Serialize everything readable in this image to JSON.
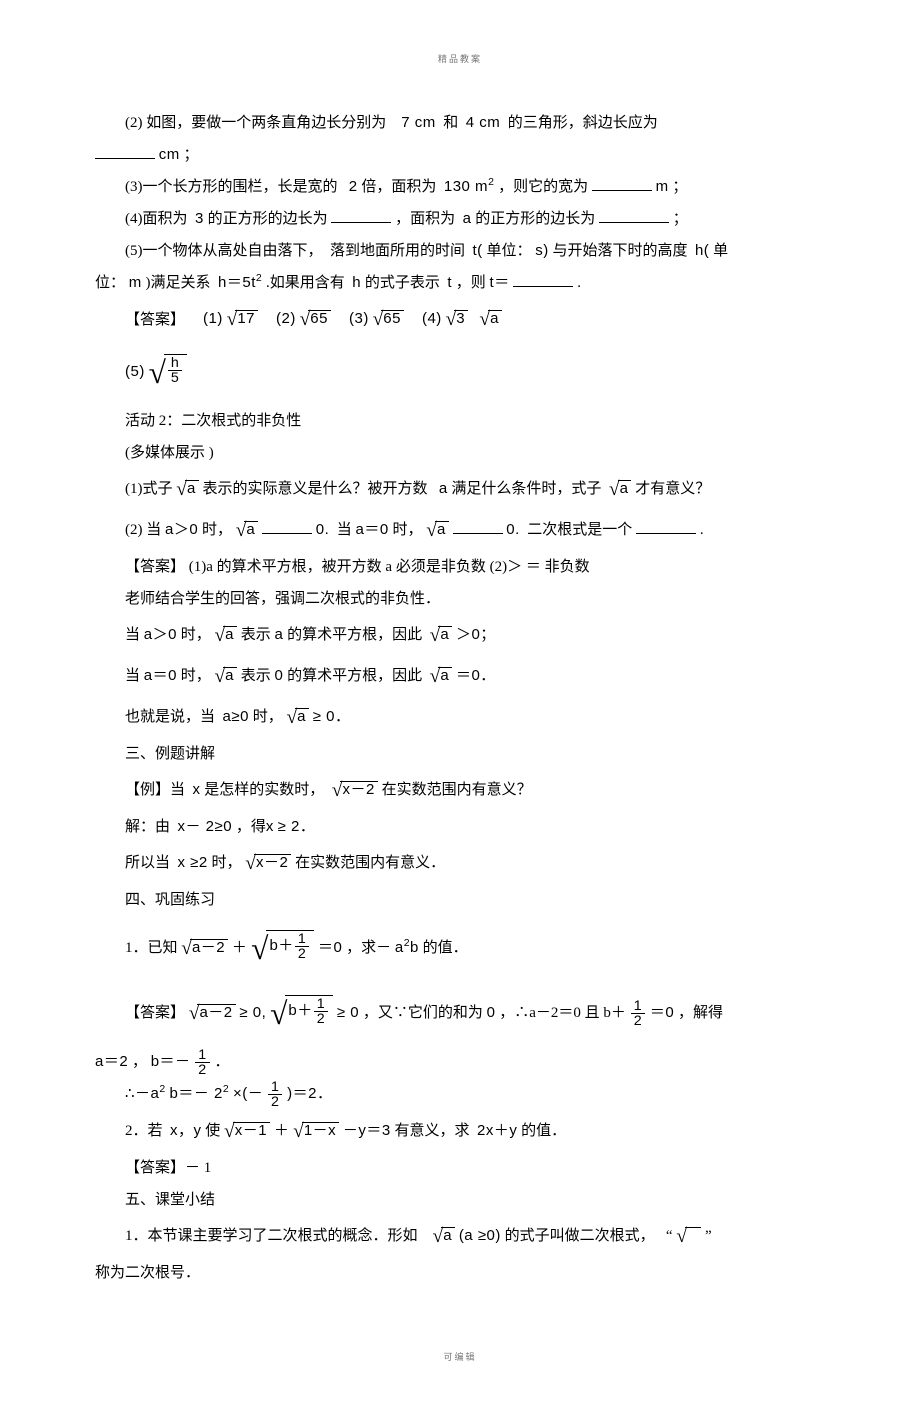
{
  "header": "精品教案",
  "footer": "可编辑",
  "q2": {
    "pre": "(2) 如图，要做一个两条直角边长分别为",
    "mid1": "7 cm",
    "mid2": "和",
    "mid3": "4 cm",
    "post": "的三角形，斜边长应为",
    "unit": "cm",
    "semi": "；"
  },
  "q3": {
    "pre": "(3)一个长方形的围栏，长是宽的",
    "mult": "2",
    "mid": "倍，面积为",
    "area": "130 m",
    "post": "，则它的宽为",
    "unit": "m",
    "semi": "；"
  },
  "q4": {
    "pre": "(4)面积为",
    "a": "3",
    "mid1": "的正方形的边长为",
    "mid2": "，面积为",
    "b": "a",
    "post": "的正方形的边长为",
    "semi": "；"
  },
  "q5": {
    "pre": "(5)一个物体从高处自由落下，",
    "mid1": "落到地面所用的时间",
    "t": "t(",
    "unit1": "单位：",
    "s": "s)",
    "mid2": "与开始落下时的高度",
    "h": "h(",
    "unit2": "单",
    "line2a": "位：",
    "m": "m",
    "line2b": ")满足关系",
    "eq": "h＝5t",
    "line2c": ".如果用含有",
    "hh": "h",
    "line2d": "的式子表示",
    "tt": "t",
    "line2e": "，则",
    "tequals": "t＝",
    "period": "."
  },
  "answers_label": "【答案】",
  "ans": {
    "a1l": "(1)",
    "a1v": "17",
    "a2l": "(2)",
    "a2v": "65",
    "a3l": "(3)",
    "a3v": "65",
    "a4l": "(4)",
    "a4v1": "3",
    "a4v2": "a",
    "a5l": "(5)",
    "a5n": "h",
    "a5d": "5"
  },
  "act2_title": "活动 2：二次根式的非负性",
  "act2_sub": "(多媒体展示  )",
  "act2_q1": {
    "pre": "(1)式子",
    "r": "a",
    "mid": "表示的实际意义是什么？被开方数",
    "a": "a",
    "post": "满足什么条件时，式子",
    "r2": "a",
    "end": "才有意义？"
  },
  "act2_q2": {
    "pre": "(2) 当",
    "c1": "a＞0",
    "mid1": "时，",
    "r1": "a",
    "z1": "0.",
    "mid2": "当",
    "c2": "a＝0",
    "mid3": "时，",
    "r2": "a",
    "z2": "0.",
    "post": "二次根式是一个",
    "period": "."
  },
  "act2_ans": "(1)a 的算术平方根，被开方数   a 必须是非负数   (2)＞  ＝  非负数",
  "teacher_line": "老师结合学生的回答，强调二次根式的非负性．",
  "pos_line": {
    "pre": "当",
    "c": "a＞0",
    "mid1": "时，",
    "r": "a",
    "mid2": "表示",
    "aa": "a",
    "mid3": "的算术平方根，因此",
    "r2": "a",
    "gt": "＞0；"
  },
  "zero_line": {
    "pre": "当",
    "c": "a＝0",
    "mid1": "时，",
    "r": "a",
    "mid2": "表示",
    "aa": "0",
    "mid3": "的算术平方根，因此",
    "r2": "a",
    "eq": "＝0．"
  },
  "ge_line": {
    "pre": "也就是说，当",
    "c": "a≥0",
    "mid": "时，",
    "r": "a",
    "ge": "≥ 0．"
  },
  "sec3": "三、例题讲解",
  "ex": {
    "label": "【例】当",
    "x": "x",
    "mid": "是怎样的实数时，",
    "rad": "x－2",
    "post": "在实数范围内有意义？"
  },
  "sol1": {
    "pre": "解：由",
    "c": "x－ 2≥0",
    "mid": "，得",
    "x": "x",
    "ge": "≥ 2．"
  },
  "sol2": {
    "pre": "所以当",
    "c": "x ≥2",
    "mid": "时，",
    "rad": "x－2",
    "post": "在实数范围内有意义．"
  },
  "sec4": "四、巩固练习",
  "p1": {
    "label": "1．已知",
    "r1": "a－2",
    "plus": "＋",
    "r2pre": "b＋",
    "r2n": "1",
    "r2d": "2",
    "eq": "＝0",
    "mid": "，求－",
    "ab": "a",
    "b": "b",
    "post": "的值．"
  },
  "p1a": {
    "label": "【答案】",
    "r1": "a－2",
    "ge1": "≥ 0,",
    "r2pre": "b＋",
    "r2n": "1",
    "r2d": "2",
    "ge2": "≥ 0",
    "mid": "，又∵它们的和为",
    "zero": "0",
    "so": "，∴a－2＝0 且 b＋",
    "fn": "1",
    "fd": "2",
    "eq0": "＝0",
    "end": "，解得"
  },
  "p1b": {
    "a": "a＝2",
    "sep": "，",
    "b": "b＝－",
    "fn": "1",
    "fd": "2",
    "period": "．"
  },
  "p1c": {
    "pre": "∴－a",
    "sup": "2",
    "b": "b＝－ 2",
    "s2": "2",
    "times": "×(－",
    "fn": "1",
    "fd": "2",
    "post": ")＝2．"
  },
  "p2": {
    "label": "2．若",
    "xy": "x，y",
    "mid": "使",
    "r1": "x－1",
    "plus": "＋",
    "r2": "1－x",
    "my": "－y＝3",
    "mean": "有意义，求",
    "expr": "2x＋y",
    "post": "的值．"
  },
  "p2a": "【答案】－ 1",
  "sec5": "五、课堂小结",
  "sum1": {
    "pre": "1．本节课主要学习了二次根式的概念．形如",
    "r": "a",
    "cond": "(a ≥0)",
    "mid": "的式子叫做二次根式，",
    "quote": "“",
    "end": "”"
  },
  "sum2": "称为二次根号．"
}
